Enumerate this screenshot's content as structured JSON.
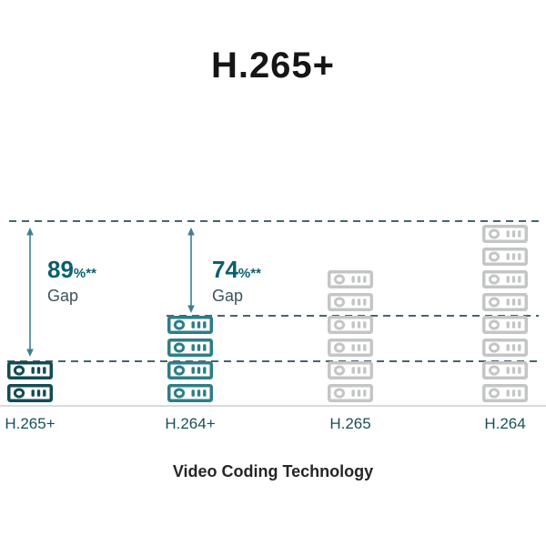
{
  "title": "H.265+",
  "caption": "Video Coding Technology",
  "chart_data": {
    "type": "bar",
    "title": "H.265+",
    "xlabel": "Video Coding Technology",
    "categories": [
      "H.265+",
      "H.264+",
      "H.265",
      "H.264"
    ],
    "values": [
      2,
      4,
      6,
      8
    ],
    "value_unit": "storage-server-icons",
    "legend": "none",
    "grid": "dashed-horizontal-reference-lines",
    "reference_lines": [
      "H.264 level",
      "H.264+ level",
      "H.265+ level"
    ],
    "annotations": [
      {
        "value": "89",
        "suffix": "%**",
        "word": "Gap",
        "meaning": "gap between H.264 level and H.265+ level"
      },
      {
        "value": "74",
        "suffix": "%**",
        "word": "Gap",
        "meaning": "gap between H.264 level and H.264+ level"
      }
    ],
    "columns": [
      {
        "label": "H.265+",
        "units": 2,
        "color": "#134b54"
      },
      {
        "label": "H.264+",
        "units": 4,
        "color": "#2e7d89"
      },
      {
        "label": "H.265",
        "units": 6,
        "color": "#c4c6c6"
      },
      {
        "label": "H.264",
        "units": 8,
        "color": "#c4c6c6"
      }
    ]
  },
  "gaps": [
    {
      "value": "89",
      "suffix": "%**",
      "word": "Gap"
    },
    {
      "value": "74",
      "suffix": "%**",
      "word": "Gap"
    }
  ],
  "colors": {
    "dark_teal": "#134b54",
    "medium_teal": "#2e7d89",
    "gray_unit": "#c4c6c6",
    "dash_line": "#46656e",
    "arrow": "#3e7f90",
    "pct_text": "#0b5f6e",
    "gap_text": "#3a555e",
    "axis_label": "#175059",
    "baseline": "#d9dbdb",
    "title_text": "#151515"
  },
  "icons": {
    "server": "storage-server-icon",
    "arrow": "double-headed-vertical-arrow-icon"
  }
}
